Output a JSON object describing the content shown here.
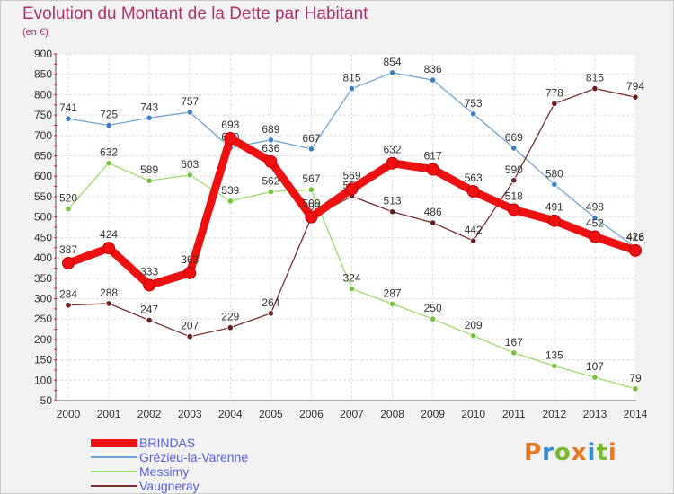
{
  "title": "Evolution du Montant de la Dette par Habitant",
  "subtitle": "(en €)",
  "logo": {
    "text": "Proxiti",
    "letter_colors": [
      "#e8791e",
      "#2e8fd3",
      "#7bb92f",
      "#e8791e",
      "#2e8fd3",
      "#7bb92f",
      "#e8791e"
    ]
  },
  "chart_data": {
    "type": "line",
    "x": [
      2000,
      2001,
      2002,
      2003,
      2004,
      2005,
      2006,
      2007,
      2008,
      2009,
      2010,
      2011,
      2012,
      2013,
      2014
    ],
    "ylim": [
      50,
      900
    ],
    "yticks": [
      50,
      100,
      150,
      200,
      250,
      300,
      350,
      400,
      450,
      500,
      550,
      600,
      650,
      700,
      750,
      800,
      850,
      900
    ],
    "grid": true,
    "legend_position": "bottom-left",
    "series": [
      {
        "name": "Grézieu-la-Varenne",
        "color": "#6ea3d5",
        "marker": "#3d7fc4",
        "emphasis": false,
        "values": [
          741,
          725,
          743,
          757,
          670,
          689,
          667,
          815,
          854,
          836,
          753,
          669,
          580,
          498,
          426
        ],
        "labels": [
          "741",
          "725",
          "743",
          "757",
          "670",
          "689",
          "667",
          "815",
          "854",
          "836",
          "753",
          "669",
          "580",
          "498",
          "426"
        ]
      },
      {
        "name": "Messimy",
        "color": "#9bdb6a",
        "marker": "#72c23a",
        "emphasis": false,
        "values": [
          520,
          632,
          589,
          603,
          539,
          562,
          567,
          324,
          287,
          250,
          209,
          167,
          135,
          107,
          79
        ],
        "labels": [
          "520",
          "632",
          "589",
          "603",
          "539",
          "562",
          "567",
          "324",
          "287",
          "250",
          "209",
          "167",
          "135",
          "107",
          "79"
        ]
      },
      {
        "name": "Vaugneray",
        "color": "#7b2c2c",
        "marker": "#6a1e1e",
        "emphasis": false,
        "values": [
          284,
          288,
          247,
          207,
          229,
          264,
          499,
          551,
          513,
          486,
          442,
          590,
          778,
          815,
          794
        ],
        "labels": [
          "284",
          "288",
          "247",
          "207",
          "229",
          "264",
          "499",
          "551",
          "513",
          "486",
          "442",
          "590",
          "778",
          "815",
          "794"
        ]
      },
      {
        "name": "BRINDAS",
        "color": "#ee1111",
        "marker": "#ee1111",
        "emphasis": true,
        "values": [
          387,
          424,
          333,
          363,
          693,
          636,
          500,
          569,
          632,
          617,
          563,
          518,
          491,
          452,
          418
        ],
        "labels": [
          "387",
          "424",
          "333",
          "363",
          "693",
          "636",
          "500",
          "569",
          "632",
          "617",
          "563",
          "518",
          "491",
          "452",
          "418"
        ]
      }
    ],
    "legend_order": [
      "BRINDAS",
      "Grézieu-la-Varenne",
      "Messimy",
      "Vaugneray"
    ]
  }
}
